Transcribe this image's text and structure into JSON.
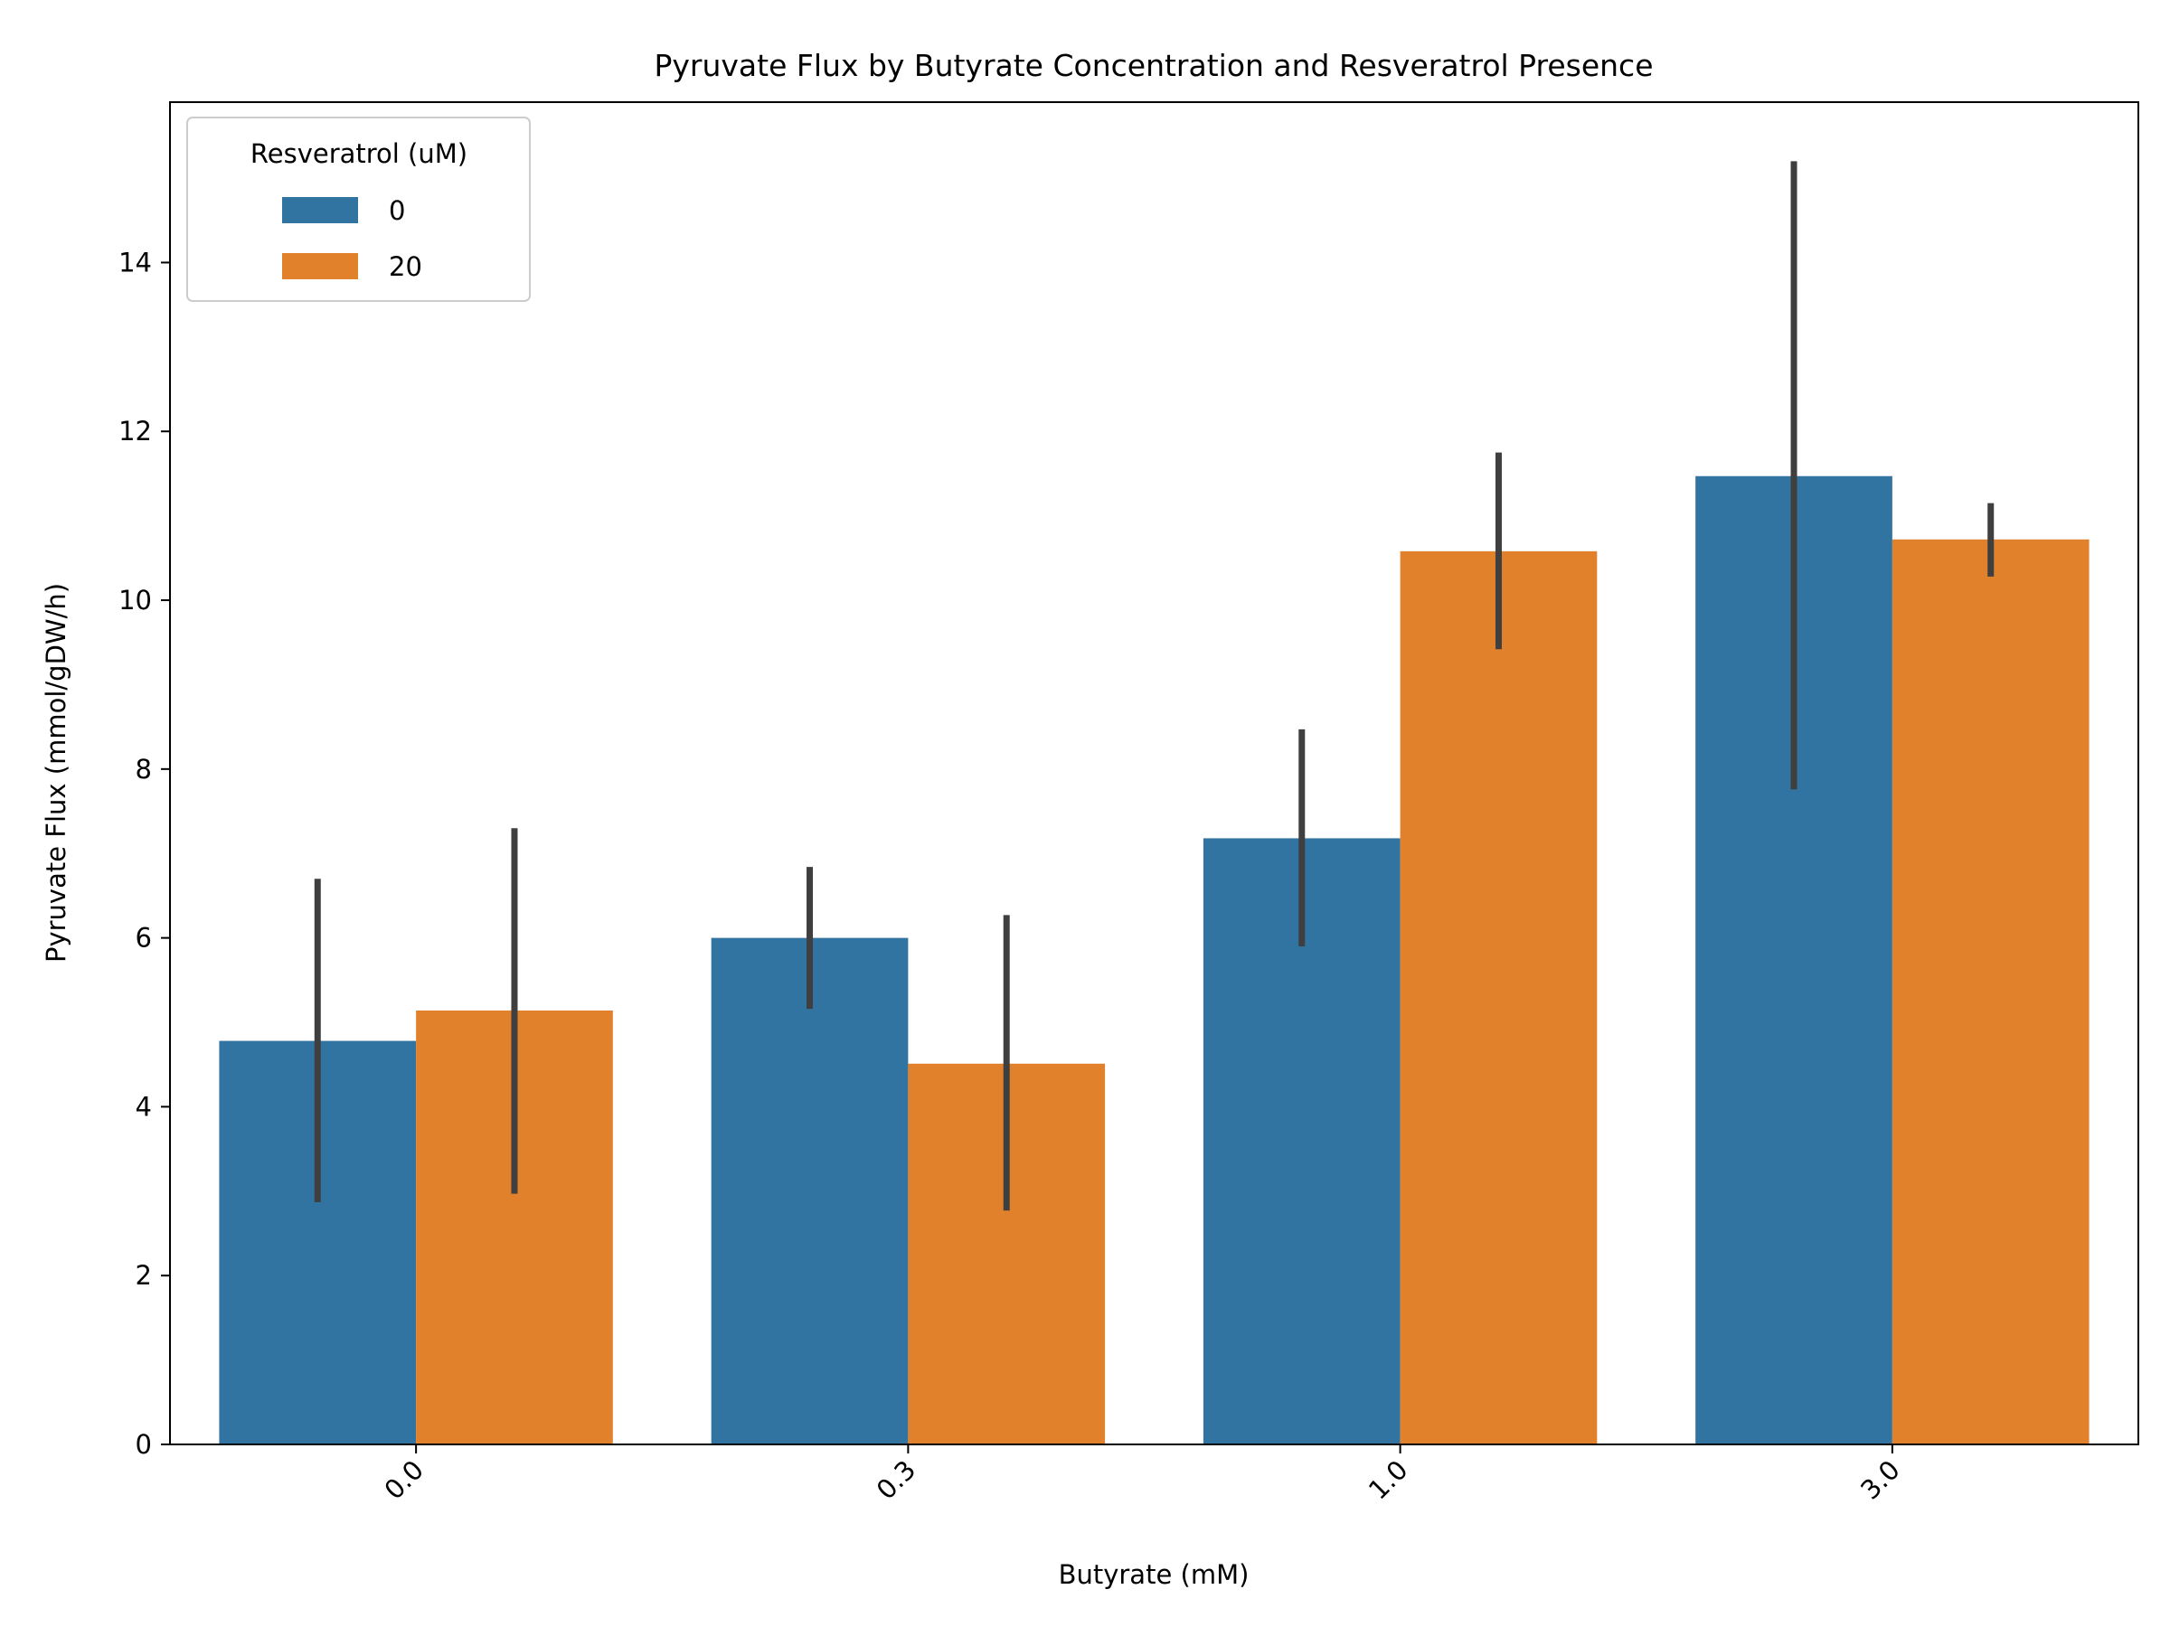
{
  "chart_data": {
    "type": "bar",
    "title": "Pyruvate Flux by Butyrate Concentration and Resveratrol Presence",
    "xlabel": "Butyrate (mM)",
    "ylabel": "Pyruvate Flux (mmol/gDW/h)",
    "categories": [
      "0.0",
      "0.3",
      "1.0",
      "3.0"
    ],
    "ylim": [
      0,
      15.9
    ],
    "yticks": [
      0,
      2,
      4,
      6,
      8,
      10,
      12,
      14
    ],
    "grid": false,
    "legend": {
      "title": "Resveratrol (uM)",
      "placement": "top-left"
    },
    "series": [
      {
        "name": "0",
        "color": "#3274a1",
        "values": [
          4.78,
          6.0,
          7.18,
          11.47
        ],
        "err_low": [
          2.87,
          5.16,
          5.9,
          7.76
        ],
        "err_high": [
          6.7,
          6.84,
          8.47,
          15.2
        ]
      },
      {
        "name": "20",
        "color": "#e1812c",
        "values": [
          5.14,
          4.51,
          10.58,
          10.72
        ],
        "err_low": [
          2.97,
          2.77,
          9.42,
          10.28
        ],
        "err_high": [
          7.3,
          6.27,
          11.75,
          11.15
        ]
      }
    ],
    "errorbar_color": "#3f3f3f"
  }
}
